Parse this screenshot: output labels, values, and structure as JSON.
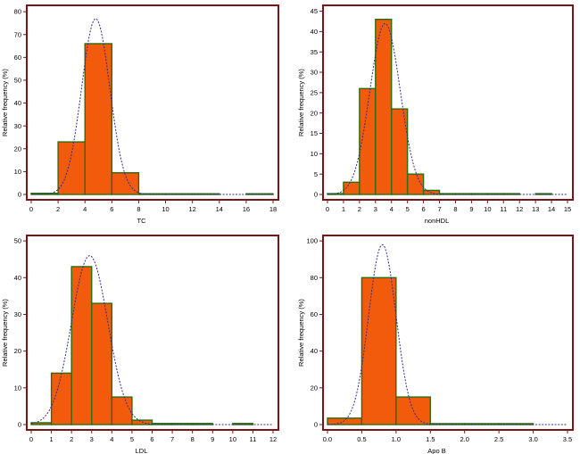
{
  "chart_data": [
    {
      "type": "bar",
      "subtype": "histogram-with-normal-curve",
      "title": "",
      "xlabel": "TC",
      "ylabel": "Relative frequency (%)",
      "xlim": [
        0,
        18
      ],
      "ylim": [
        0,
        82
      ],
      "xticks": [
        0,
        2,
        4,
        6,
        8,
        10,
        12,
        14,
        16,
        18
      ],
      "yticks": [
        0,
        10,
        20,
        30,
        40,
        50,
        60,
        70,
        80
      ],
      "bins": [
        {
          "x0": 0,
          "x1": 2,
          "value": 0.5
        },
        {
          "x0": 2,
          "x1": 4,
          "value": 23
        },
        {
          "x0": 4,
          "x1": 6,
          "value": 66
        },
        {
          "x0": 6,
          "x1": 8,
          "value": 9.5
        },
        {
          "x0": 8,
          "x1": 10,
          "value": 0.3
        },
        {
          "x0": 10,
          "x1": 12,
          "value": 0.3
        },
        {
          "x0": 12,
          "x1": 14,
          "value": 0.3
        },
        {
          "x0": 14,
          "x1": 16,
          "value": 0
        },
        {
          "x0": 16,
          "x1": 18,
          "value": 0.3
        }
      ],
      "normal_curve": {
        "mean": 4.8,
        "sd": 1.05,
        "peak": 77
      }
    },
    {
      "type": "bar",
      "subtype": "histogram-with-normal-curve",
      "title": "",
      "xlabel": "nonHDL",
      "ylabel": "Relative frequency (%)",
      "xlim": [
        0,
        15
      ],
      "ylim": [
        0,
        46
      ],
      "xticks": [
        0,
        1,
        2,
        3,
        4,
        5,
        6,
        7,
        8,
        9,
        10,
        11,
        12,
        13,
        14,
        15
      ],
      "yticks": [
        0,
        5,
        10,
        15,
        20,
        25,
        30,
        35,
        40,
        45
      ],
      "bins": [
        {
          "x0": 0,
          "x1": 1,
          "value": 0.2
        },
        {
          "x0": 1,
          "x1": 2,
          "value": 3
        },
        {
          "x0": 2,
          "x1": 3,
          "value": 26
        },
        {
          "x0": 3,
          "x1": 4,
          "value": 43
        },
        {
          "x0": 4,
          "x1": 5,
          "value": 21
        },
        {
          "x0": 5,
          "x1": 6,
          "value": 5
        },
        {
          "x0": 6,
          "x1": 7,
          "value": 1
        },
        {
          "x0": 7,
          "x1": 8,
          "value": 0.2
        },
        {
          "x0": 8,
          "x1": 9,
          "value": 0.2
        },
        {
          "x0": 9,
          "x1": 10,
          "value": 0.2
        },
        {
          "x0": 10,
          "x1": 11,
          "value": 0.2
        },
        {
          "x0": 11,
          "x1": 12,
          "value": 0.2
        },
        {
          "x0": 12,
          "x1": 13,
          "value": 0
        },
        {
          "x0": 13,
          "x1": 14,
          "value": 0.2
        }
      ],
      "normal_curve": {
        "mean": 3.6,
        "sd": 0.95,
        "peak": 42
      }
    },
    {
      "type": "bar",
      "subtype": "histogram-with-normal-curve",
      "title": "",
      "xlabel": "LDL",
      "ylabel": "Relative frequency (%)",
      "xlim": [
        0,
        12
      ],
      "ylim": [
        0,
        51
      ],
      "xticks": [
        0,
        1,
        2,
        3,
        4,
        5,
        6,
        7,
        8,
        9,
        10,
        11,
        12
      ],
      "yticks": [
        0,
        10,
        20,
        30,
        40,
        50
      ],
      "bins": [
        {
          "x0": 0,
          "x1": 1,
          "value": 0.5
        },
        {
          "x0": 1,
          "x1": 2,
          "value": 14
        },
        {
          "x0": 2,
          "x1": 3,
          "value": 43
        },
        {
          "x0": 3,
          "x1": 4,
          "value": 33
        },
        {
          "x0": 4,
          "x1": 5,
          "value": 7.5
        },
        {
          "x0": 5,
          "x1": 6,
          "value": 1.2
        },
        {
          "x0": 6,
          "x1": 7,
          "value": 0.3
        },
        {
          "x0": 7,
          "x1": 8,
          "value": 0.3
        },
        {
          "x0": 8,
          "x1": 9,
          "value": 0.3
        },
        {
          "x0": 9,
          "x1": 10,
          "value": 0
        },
        {
          "x0": 10,
          "x1": 11,
          "value": 0.3
        }
      ],
      "normal_curve": {
        "mean": 2.9,
        "sd": 0.9,
        "peak": 46
      }
    },
    {
      "type": "bar",
      "subtype": "histogram-with-normal-curve",
      "title": "",
      "xlabel": "Apo B",
      "ylabel": "Relative frequency (%)",
      "xlim": [
        0,
        3.5
      ],
      "ylim": [
        0,
        102
      ],
      "xticks": [
        "0.0",
        "0.5",
        "1.0",
        "1.5",
        "2.0",
        "2.5",
        "3.0",
        "3.5"
      ],
      "yticks": [
        0,
        20,
        40,
        60,
        80,
        100
      ],
      "bins": [
        {
          "x0": 0,
          "x1": 0.5,
          "value": 3.5
        },
        {
          "x0": 0.5,
          "x1": 1.0,
          "value": 80
        },
        {
          "x0": 1.0,
          "x1": 1.5,
          "value": 15
        },
        {
          "x0": 1.5,
          "x1": 2.0,
          "value": 0.5
        },
        {
          "x0": 2.0,
          "x1": 2.5,
          "value": 0.5
        },
        {
          "x0": 2.5,
          "x1": 3.0,
          "value": 0.5
        }
      ],
      "normal_curve": {
        "mean": 0.8,
        "sd": 0.2,
        "peak": 98
      }
    }
  ]
}
